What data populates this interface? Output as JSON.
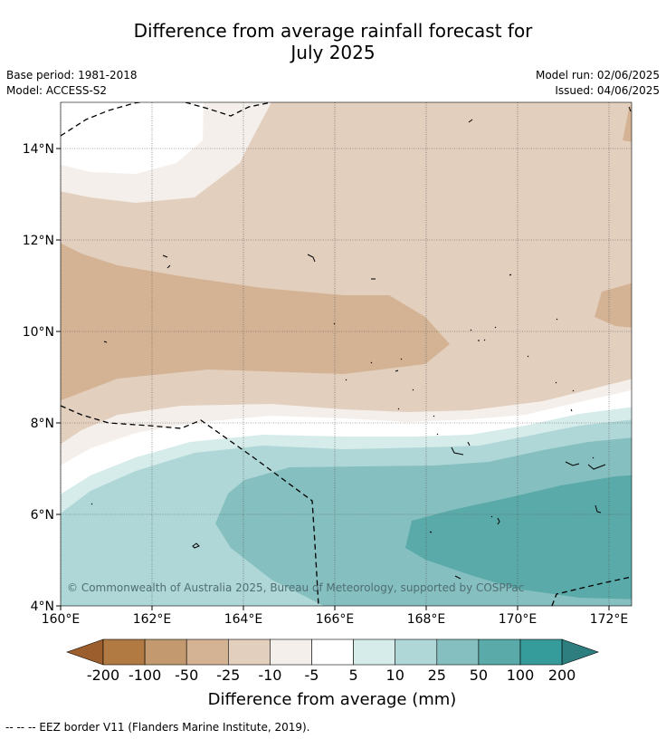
{
  "title_line1": "Difference from average rainfall forecast for",
  "title_line2": "July 2025",
  "base_period": "Base period: 1981-2018",
  "model": "Model: ACCESS-S2",
  "model_run": "Model run: 02/06/2025",
  "issued": "Issued: 04/06/2025",
  "copyright": "© Commonwealth of Australia 2025, Bureau of Meteorology, supported by COSPPac",
  "footnote": "--  --  -- EEZ border V11 (Flanders Marine Institute, 2019).",
  "map": {
    "lon_range": [
      160,
      172.5
    ],
    "lat_range": [
      4,
      15
    ],
    "x_ticks": [
      "160°E",
      "162°E",
      "164°E",
      "166°E",
      "168°E",
      "170°E",
      "172°E"
    ],
    "y_ticks": [
      "4°N",
      "6°N",
      "8°N",
      "10°N",
      "12°N",
      "14°N"
    ]
  },
  "colorbar": {
    "title": "Difference from average (mm)",
    "labels": [
      "-200",
      "-100",
      "-50",
      "-25",
      "-10",
      "-5",
      "5",
      "10",
      "25",
      "50",
      "100",
      "200"
    ],
    "colors": [
      "#9b5e2c",
      "#b27a43",
      "#c39a6f",
      "#d4b394",
      "#e3cfbe",
      "#f4efea",
      "#ffffff",
      "#d6eceb",
      "#b0d7d7",
      "#86bfbf",
      "#5aaaaa",
      "#359b9b",
      "#2e7e80"
    ]
  }
}
